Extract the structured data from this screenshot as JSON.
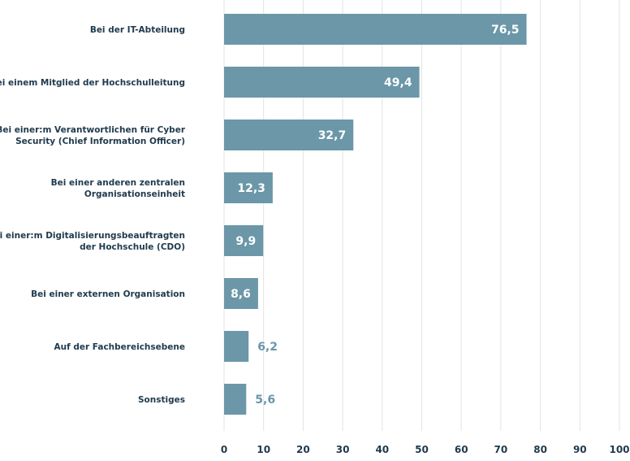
{
  "chart_data": {
    "type": "bar",
    "orientation": "horizontal",
    "categories": [
      [
        "Bei der IT-Abteilung"
      ],
      [
        "Bei einem Mitglied der Hochschulleitung"
      ],
      [
        "Bei einer:m Verantwortlichen für Cyber",
        "Security (Chief Information Officer)"
      ],
      [
        "Bei einer anderen zentralen",
        "Organisationseinheit"
      ],
      [
        "Bei einer:m Digitalisierungsbeauftragten",
        "der Hochschule (CDO)"
      ],
      [
        "Bei einer externen Organisation"
      ],
      [
        "Auf der Fachbereichsebene"
      ],
      [
        "Sonstiges"
      ]
    ],
    "values": [
      76.5,
      49.4,
      32.7,
      12.3,
      9.9,
      8.6,
      6.2,
      5.6
    ],
    "value_labels": [
      "76,5",
      "49,4",
      "32,7",
      "12,3",
      "9,9",
      "8,6",
      "6,2",
      "5,6"
    ],
    "xlim": [
      0,
      100
    ],
    "xticks": [
      "0",
      "10",
      "20",
      "30",
      "40",
      "50",
      "60",
      "70",
      "80",
      "90",
      "100"
    ],
    "grid": true,
    "colors": {
      "bar": "#6b97a8",
      "label_outside": "#6a95a8",
      "label_inside": "#ffffff",
      "text": "#1f3a4d",
      "grid": "#e3e3e3"
    }
  }
}
